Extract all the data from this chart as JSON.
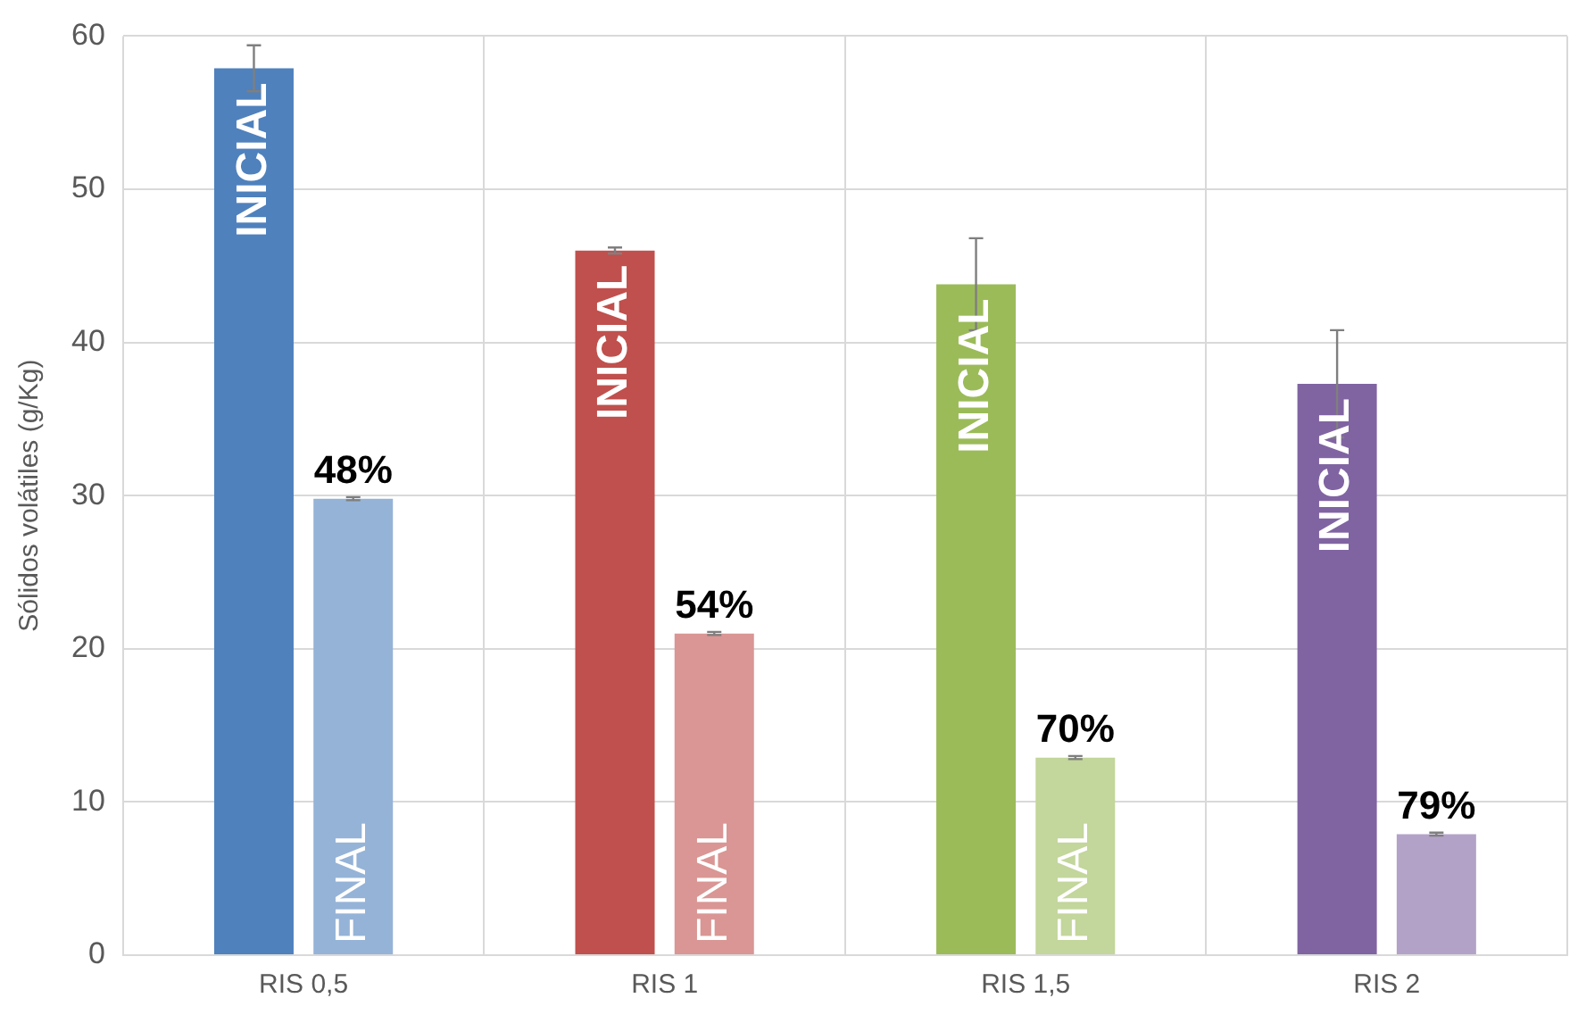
{
  "chart_data": {
    "type": "bar",
    "ylabel": "Sólidos volátiles (g/Kg)",
    "categories": [
      "RIS 0,5",
      "RIS 1",
      "RIS 1,5",
      "RIS 2"
    ],
    "series": [
      {
        "name": "INICIAL",
        "colors": [
          "#4f81bd",
          "#c0504d",
          "#9bbb59",
          "#8064a2"
        ],
        "values": [
          57.9,
          46.0,
          43.8,
          37.3
        ],
        "errors": [
          1.5,
          0.2,
          3,
          3.5
        ]
      },
      {
        "name": "FINAL",
        "colors": [
          "#95b3d7",
          "#d99694",
          "#c3d69b",
          "#b3a2c7"
        ],
        "values": [
          29.8,
          21.0,
          12.9,
          7.9
        ],
        "errors": [
          0.1,
          0.1,
          0.1,
          0.1
        ]
      }
    ],
    "annotations": [
      "48%",
      "54%",
      "70%",
      "79%"
    ],
    "ylim": [
      0,
      60
    ],
    "yticks": [
      0,
      10,
      20,
      30,
      40,
      50,
      60
    ],
    "grid": true,
    "legend": false
  }
}
